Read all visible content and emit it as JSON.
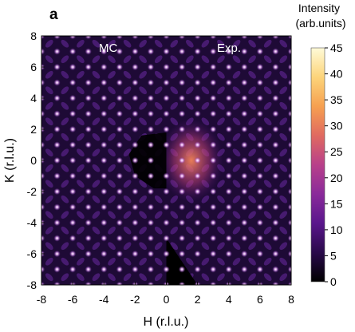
{
  "chart_data": {
    "type": "heatmap",
    "panel_label": "a",
    "xlabel": "H (r.l.u.)",
    "ylabel": "K (r.l.u.)",
    "xlim": [
      -8,
      8
    ],
    "ylim": [
      -8,
      8
    ],
    "xticks": [
      "-8",
      "-6",
      "-4",
      "-2",
      "0",
      "2",
      "4",
      "6",
      "8"
    ],
    "yticks": [
      "8",
      "6",
      "4",
      "2",
      "0",
      "-2",
      "-4",
      "-6",
      "-8"
    ],
    "regions": [
      {
        "name": "MC",
        "h_range": [
          -8,
          0
        ]
      },
      {
        "name": "Exp.",
        "h_range": [
          0,
          8
        ]
      }
    ],
    "colorbar": {
      "title_line1": "Intensity",
      "title_line2": "(arb.units)",
      "range": [
        0,
        45
      ],
      "ticks": [
        "45",
        "40",
        "35",
        "30",
        "25",
        "20",
        "15",
        "10",
        "5",
        "0"
      ],
      "colors": [
        "#000000",
        "#2a0a4a",
        "#5a168c",
        "#8a2a9a",
        "#b8408a",
        "#e06a60",
        "#f6a050",
        "#fcd47a",
        "#fffbd8"
      ]
    },
    "bragg_peaks": {
      "grid_step": 1,
      "peak_intensity": 42,
      "diffuse_intensity": 10,
      "masked_intensity": 0
    }
  }
}
